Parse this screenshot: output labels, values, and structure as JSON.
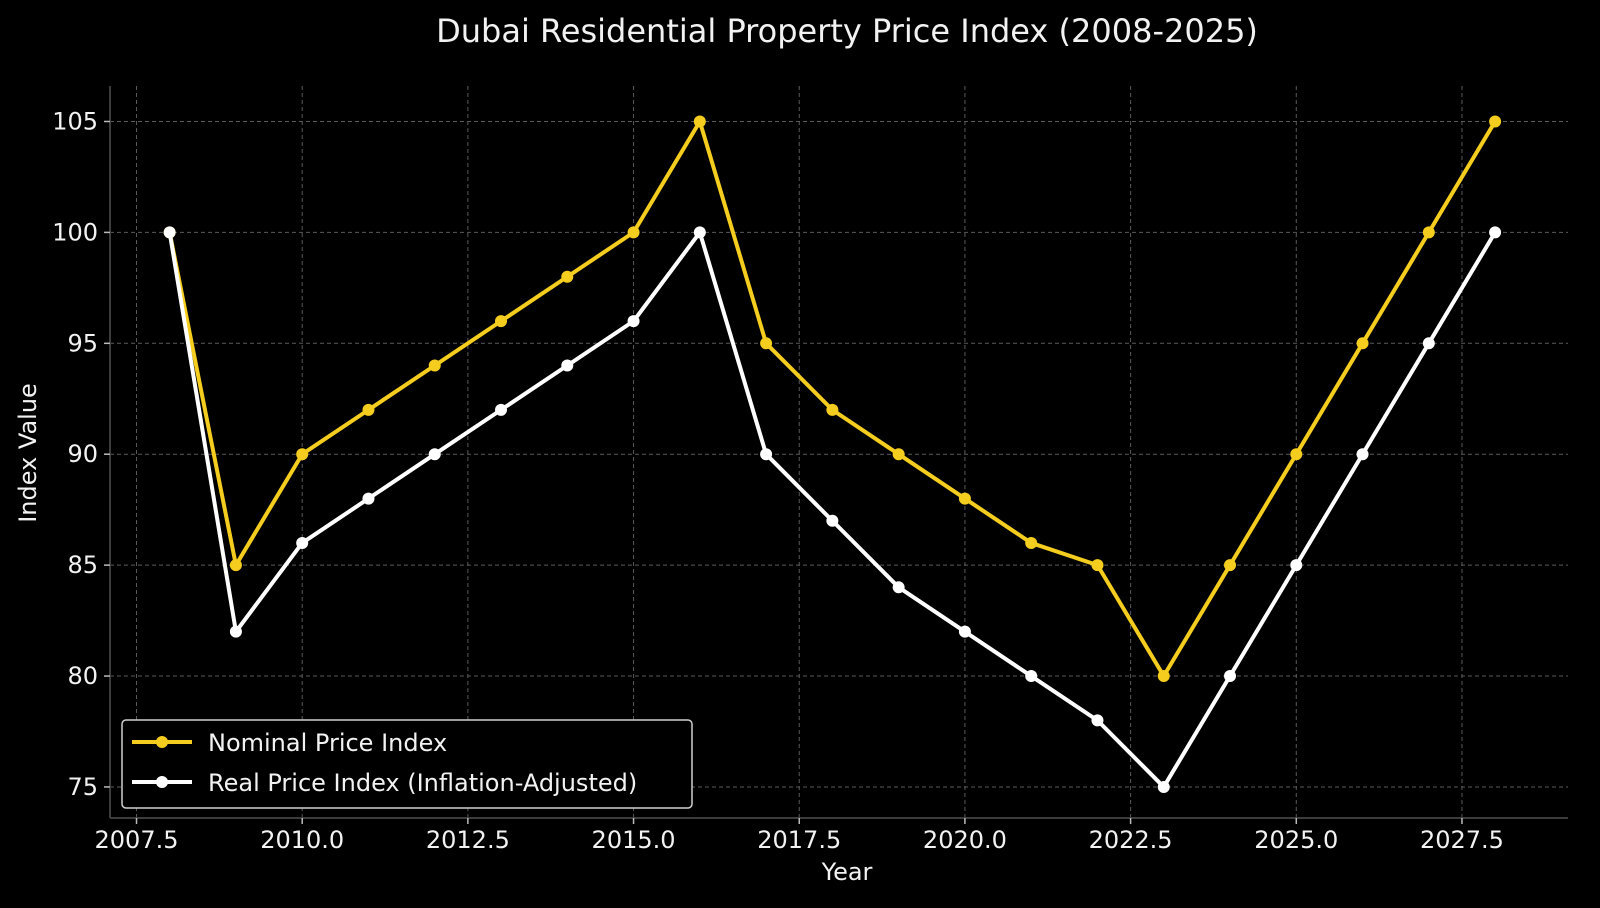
{
  "chart_data": {
    "type": "line",
    "title": "Dubai Residential Property Price Index (2008-2025)",
    "xlabel": "Year",
    "ylabel": "Index Value",
    "x": [
      2008,
      2009,
      2010,
      2011,
      2012,
      2013,
      2014,
      2015,
      2016,
      2017,
      2018,
      2019,
      2020,
      2021,
      2022,
      2023,
      2024,
      2025,
      2026,
      2027,
      2028
    ],
    "series": [
      {
        "name": "Nominal Price Index",
        "color": "#f5cd1e",
        "values": [
          100,
          85,
          90,
          92,
          94,
          96,
          98,
          100,
          105,
          95,
          92,
          90,
          88,
          86,
          85,
          80,
          85,
          90,
          95,
          100,
          105
        ]
      },
      {
        "name": "Real Price Index (Inflation-Adjusted)",
        "color": "#ffffff",
        "values": [
          100,
          82,
          86,
          88,
          90,
          92,
          94,
          96,
          100,
          90,
          87,
          84,
          82,
          80,
          78,
          75,
          80,
          85,
          90,
          95,
          100
        ]
      }
    ],
    "xlim": [
      2007.1,
      2029.1
    ],
    "ylim": [
      73.6,
      106.6
    ],
    "xticks": [
      2007.5,
      2010.0,
      2012.5,
      2015.0,
      2017.5,
      2020.0,
      2022.5,
      2025.0,
      2027.5
    ],
    "xtick_labels": [
      "2007.5",
      "2010.0",
      "2012.5",
      "2015.0",
      "2017.5",
      "2020.0",
      "2022.5",
      "2025.0",
      "2027.5"
    ],
    "yticks": [
      75,
      80,
      85,
      90,
      95,
      100,
      105
    ],
    "ytick_labels": [
      "75",
      "80",
      "85",
      "90",
      "95",
      "100",
      "105"
    ],
    "grid": true,
    "legend_position": "lower-left",
    "background": "#000000",
    "grid_color": "#5a5a5a",
    "axis_color": "#3c3c3c"
  }
}
